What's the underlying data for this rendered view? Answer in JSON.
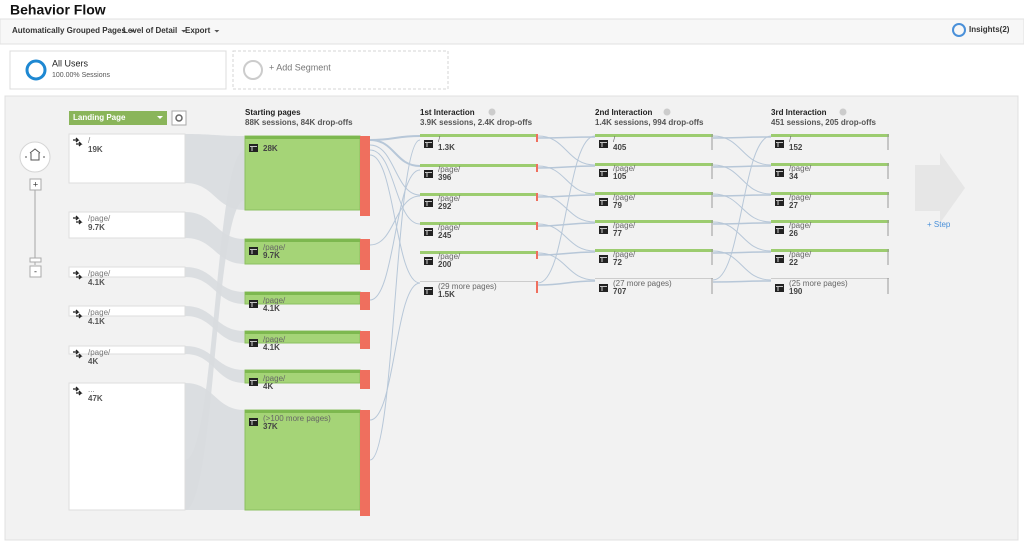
{
  "header": {
    "title": "Behavior Flow",
    "menu": [
      "Automatically Grouped Pages",
      "Level of Detail",
      "Export"
    ],
    "insights": "Insights(2)"
  },
  "segments": {
    "active": {
      "name": "All Users",
      "share": "100.00% Sessions"
    },
    "add": "+ Add Segment"
  },
  "zoom": {
    "in": "+",
    "out": "-"
  },
  "landing": {
    "selector": "Landing Page",
    "nodes": [
      {
        "label": "/",
        "value": "19K"
      },
      {
        "label": "/page/",
        "value": "9.7K"
      },
      {
        "label": "/page/",
        "value": "4.1K"
      },
      {
        "label": "/page/",
        "value": "4.1K"
      },
      {
        "label": "/page/",
        "value": "4K"
      },
      {
        "label": "...",
        "value": "47K"
      }
    ]
  },
  "columns": [
    {
      "title": "Starting pages",
      "summary": "88K sessions, 84K drop-offs",
      "nodes": [
        {
          "value": "28K"
        },
        {
          "label": "/page/",
          "value": "9.7K"
        },
        {
          "label": "/page/",
          "value": "4.1K"
        },
        {
          "label": "/page/",
          "value": "4.1K"
        },
        {
          "label": "/page/",
          "value": "4K"
        },
        {
          "label": "(>100 more pages)",
          "value": "37K"
        }
      ]
    },
    {
      "title": "1st Interaction",
      "summary": "3.9K sessions, 2.4K drop-offs",
      "nodes": [
        {
          "label": "/",
          "value": "1.3K"
        },
        {
          "label": "/page/",
          "value": "396"
        },
        {
          "label": "/page/",
          "value": "292"
        },
        {
          "label": "/page/",
          "value": "245"
        },
        {
          "label": "/page/",
          "value": "200"
        },
        {
          "label": "(29 more pages)",
          "value": "1.5K"
        }
      ]
    },
    {
      "title": "2nd Interaction",
      "summary": "1.4K sessions, 994 drop-offs",
      "nodes": [
        {
          "label": "/",
          "value": "405"
        },
        {
          "label": "/page/",
          "value": "105"
        },
        {
          "label": "/page/",
          "value": "79"
        },
        {
          "label": "/page/",
          "value": "77"
        },
        {
          "label": "/page/",
          "value": "72"
        },
        {
          "label": "(27 more pages)",
          "value": "707"
        }
      ]
    },
    {
      "title": "3rd Interaction",
      "summary": "451 sessions, 205 drop-offs",
      "nodes": [
        {
          "label": "/",
          "value": "152"
        },
        {
          "label": "/page/",
          "value": "34"
        },
        {
          "label": "/page/",
          "value": "27"
        },
        {
          "label": "/page/",
          "value": "26"
        },
        {
          "label": "/page/",
          "value": "22"
        },
        {
          "label": "(25 more pages)",
          "value": "190"
        }
      ]
    }
  ],
  "step": "+ Step"
}
